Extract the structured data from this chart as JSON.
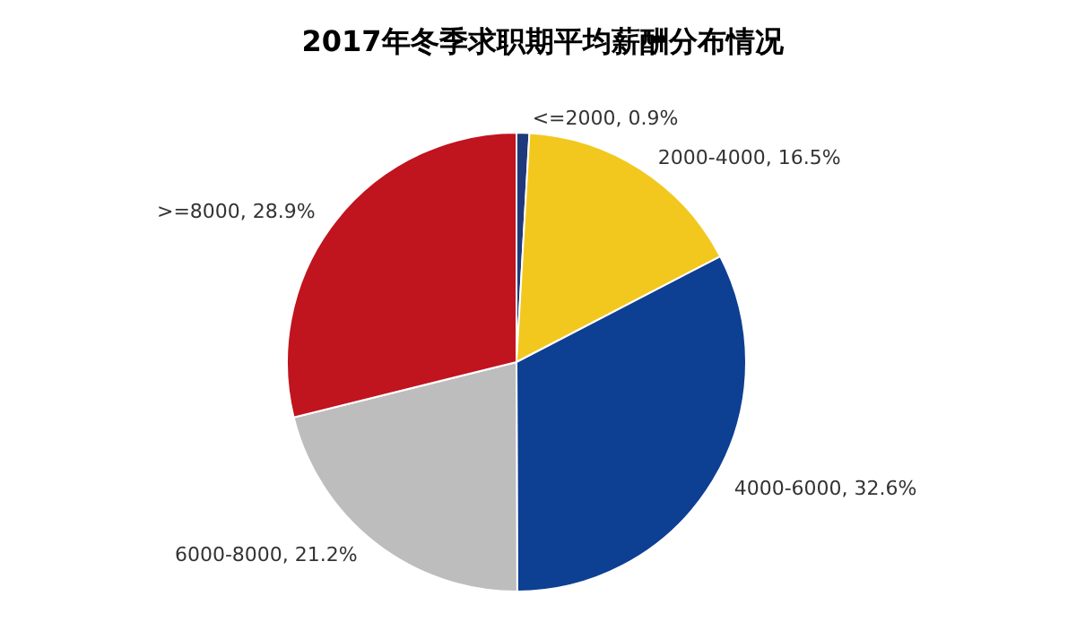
{
  "chart_data": {
    "type": "pie",
    "title": "2017年冬季求职期平均薪酬分布情况",
    "categories": [
      "<=2000",
      "2000-4000",
      "4000-6000",
      "6000-8000",
      ">=8000"
    ],
    "values": [
      0.9,
      16.5,
      32.6,
      21.2,
      28.9
    ],
    "colors": [
      "#1f3a7a",
      "#f2c81e",
      "#0d3f93",
      "#bdbdbd",
      "#c0141e"
    ],
    "value_labels": [
      "0.9%",
      "16.5%",
      "32.6%",
      "21.2%",
      "28.9%"
    ],
    "legend": false
  }
}
